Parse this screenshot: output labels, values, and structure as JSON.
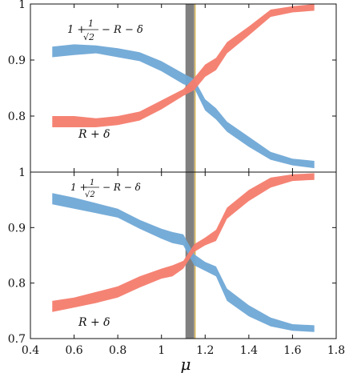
{
  "chart_data": {
    "type": "area",
    "xlabel": "μ",
    "xlim": [
      0.4,
      1.8
    ],
    "x_ticks": [
      "0.4",
      "0.6",
      "0.8",
      "1",
      "1.2",
      "1.4",
      "1.6",
      "1.8"
    ],
    "vertical_band": {
      "x_range": [
        1.11,
        1.15
      ],
      "color": "#808080",
      "edge_color": "#d4b24c"
    },
    "panels": [
      {
        "name": "top",
        "ylim": [
          0.7,
          1.0
        ],
        "y_ticks": [
          "0.8",
          "0.9",
          "1"
        ],
        "labels": {
          "upper": {
            "num_lead": "1 +",
            "frac_num": "1",
            "frac_den": "√2",
            "tail": "− R − δ"
          },
          "lower": "R + δ"
        },
        "series": [
          {
            "color": "#6fa8d6",
            "x": [
              0.5,
              0.6,
              0.7,
              0.8,
              0.9,
              1.0,
              1.1,
              1.15,
              1.2,
              1.25,
              1.3,
              1.4,
              1.5,
              1.6,
              1.7
            ],
            "lower": [
              0.905,
              0.909,
              0.912,
              0.905,
              0.898,
              0.88,
              0.857,
              0.85,
              0.81,
              0.794,
              0.772,
              0.745,
              0.722,
              0.712,
              0.707
            ],
            "upper": [
              0.924,
              0.928,
              0.926,
              0.921,
              0.914,
              0.898,
              0.876,
              0.866,
              0.83,
              0.814,
              0.79,
              0.763,
              0.736,
              0.724,
              0.72
            ]
          },
          {
            "color": "#f47c6d",
            "x": [
              0.5,
              0.6,
              0.7,
              0.8,
              0.9,
              1.0,
              1.1,
              1.15,
              1.2,
              1.25,
              1.3,
              1.4,
              1.5,
              1.6,
              1.7
            ],
            "lower": [
              0.78,
              0.78,
              0.78,
              0.784,
              0.792,
              0.812,
              0.836,
              0.846,
              0.87,
              0.882,
              0.912,
              0.944,
              0.977,
              0.985,
              0.988
            ],
            "upper": [
              0.8,
              0.8,
              0.796,
              0.8,
              0.808,
              0.828,
              0.848,
              0.868,
              0.892,
              0.904,
              0.932,
              0.96,
              0.99,
              0.996,
              1.0
            ]
          }
        ]
      },
      {
        "name": "bottom",
        "ylim": [
          0.7,
          1.0
        ],
        "y_ticks": [
          "0.7",
          "0.8",
          "0.9",
          "1"
        ],
        "labels": {
          "upper": {
            "num_lead": "1 +",
            "frac_num": "1",
            "frac_den": "√2",
            "tail": "− R − δ"
          },
          "lower": "R + δ"
        },
        "series": [
          {
            "color": "#6fa8d6",
            "x": [
              0.5,
              0.6,
              0.7,
              0.8,
              0.9,
              1.0,
              1.05,
              1.1,
              1.15,
              1.2,
              1.25,
              1.3,
              1.4,
              1.5,
              1.6,
              1.7
            ],
            "lower": [
              0.942,
              0.934,
              0.926,
              0.918,
              0.898,
              0.88,
              0.872,
              0.868,
              0.832,
              0.822,
              0.812,
              0.768,
              0.74,
              0.722,
              0.714,
              0.712
            ],
            "upper": [
              0.962,
              0.954,
              0.944,
              0.934,
              0.914,
              0.898,
              0.892,
              0.888,
              0.852,
              0.838,
              0.83,
              0.79,
              0.76,
              0.738,
              0.726,
              0.724
            ]
          },
          {
            "color": "#f47c6d",
            "x": [
              0.5,
              0.6,
              0.7,
              0.8,
              0.9,
              1.0,
              1.05,
              1.1,
              1.15,
              1.2,
              1.25,
              1.3,
              1.4,
              1.5,
              1.6,
              1.7
            ],
            "lower": [
              0.748,
              0.756,
              0.764,
              0.774,
              0.792,
              0.808,
              0.812,
              0.826,
              0.856,
              0.868,
              0.876,
              0.916,
              0.948,
              0.972,
              0.984,
              0.986
            ],
            "upper": [
              0.768,
              0.774,
              0.784,
              0.794,
              0.812,
              0.826,
              0.832,
              0.84,
              0.87,
              0.882,
              0.896,
              0.936,
              0.968,
              0.99,
              0.996,
              0.998
            ]
          }
        ]
      }
    ]
  }
}
